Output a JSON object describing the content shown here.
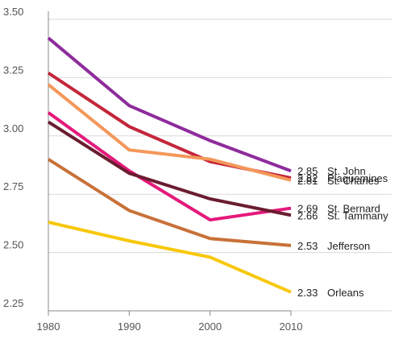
{
  "chart_data": {
    "type": "line",
    "title": "",
    "xlabel": "",
    "ylabel": "",
    "x": [
      1980,
      1990,
      2000,
      2010
    ],
    "x_tick_labels": [
      "1980",
      "1990",
      "2000",
      "2010"
    ],
    "ylim": [
      2.25,
      3.5
    ],
    "y_ticks": [
      2.25,
      2.5,
      2.75,
      3.0,
      3.25,
      3.5
    ],
    "y_tick_labels": [
      "2.25",
      "2.50",
      "2.75",
      "3.00",
      "3.25",
      "3.50"
    ],
    "grid": "horizontal",
    "legend": "direct labels at right end of each line",
    "series": [
      {
        "name": "St. John",
        "end_label": "2.85",
        "color": "#8e2c9c",
        "values": [
          3.42,
          3.13,
          2.98,
          2.85
        ]
      },
      {
        "name": "Plaquemines",
        "end_label": "2.82",
        "color": "#c4263a",
        "values": [
          3.27,
          3.04,
          2.89,
          2.82
        ]
      },
      {
        "name": "St. Charles",
        "end_label": "2.81",
        "color": "#f4975a",
        "values": [
          3.22,
          2.94,
          2.9,
          2.81
        ]
      },
      {
        "name": "St. Bernard",
        "end_label": "2.69",
        "color": "#e4197b",
        "values": [
          3.1,
          2.85,
          2.64,
          2.69
        ]
      },
      {
        "name": "St. Tammany",
        "end_label": "2.66",
        "color": "#6b1c30",
        "values": [
          3.06,
          2.84,
          2.73,
          2.66
        ]
      },
      {
        "name": "Jefferson",
        "end_label": "2.53",
        "color": "#c87138",
        "values": [
          2.9,
          2.68,
          2.56,
          2.53
        ]
      },
      {
        "name": "Orleans",
        "end_label": "2.33",
        "color": "#f7c80c",
        "values": [
          2.63,
          2.55,
          2.48,
          2.33
        ]
      }
    ]
  }
}
